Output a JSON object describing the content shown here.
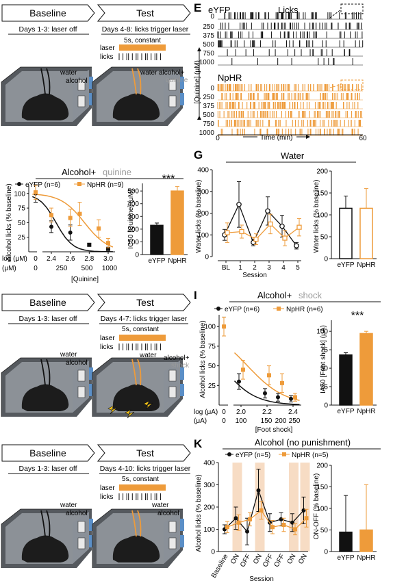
{
  "colors": {
    "eyfp": "#111111",
    "nphr": "#ee9b3a",
    "gray": "#9a9a9a",
    "shade": "#f7dcc4"
  },
  "panelA": {
    "baseline": "Baseline",
    "baseline_days": "Days 1-3: laser off",
    "test": "Test",
    "test_days": "Days 4-8: licks trigger laser",
    "laser_desc": "5s, constant",
    "laser": "laser",
    "licks": "licks",
    "water": "water",
    "alcohol": "alcohol",
    "water2": "water",
    "alcohol_plus": "alcohol+",
    "quinine": "quinine"
  },
  "panelB": {
    "title_a": "Alcohol+",
    "title_b": "quinine",
    "legend_eyfp": "eYFP (n=6)",
    "legend_nphr": "NpHR (n=9)",
    "ylabel": "Alcohol licks (% baseline)",
    "log_label": "log (μM)",
    "um_label": "(μM)",
    "xlabel": "[Quinine]",
    "bar_ylabel": "IC50 [Quinine] (μM)",
    "sig": "***",
    "bar_cats": [
      "eYFP",
      "NpHR"
    ]
  },
  "panelE": {
    "letter": "E",
    "eyfp": "eYFP",
    "licks": "Licks",
    "nphr": "NpHR",
    "axis_label": "[Quinine] (μM)",
    "time_label": "Time (min)",
    "t0": "0",
    "t60": "60",
    "conc": [
      "0",
      "250",
      "375",
      "500",
      "750",
      "1000"
    ]
  },
  "panelG": {
    "letter": "G",
    "title": "Water",
    "ylabel": "Water licks (% baseline)",
    "xlabel": "Session",
    "bar_ylabel": "Water licks (% baseline)",
    "bar_cats": [
      "eYFP",
      "NpHR"
    ]
  },
  "panelH": {
    "baseline": "Baseline",
    "baseline_days": "Days 1-3: laser off",
    "test": "Test",
    "test_days": "Days 4-7: licks trigger laser",
    "laser_desc": "5s, constant",
    "laser": "laser",
    "licks": "licks",
    "water": "water",
    "alcohol": "alcohol",
    "water2": "water",
    "alcohol_plus": "alcohol+",
    "shock": "shock"
  },
  "panelI": {
    "letter": "I",
    "title_a": "Alcohol+",
    "title_b": "shock",
    "legend_eyfp": "eYFP (n=6)",
    "legend_nphr": "NpHR (n=6)",
    "ylabel": "Alcohol licks (% baseline)",
    "log_label": "log (μA)",
    "ua_label": "(μA)",
    "xlabel": "[Foot shock]",
    "bar_ylabel": "IA50 [Foot shock] (μA)",
    "sig": "***",
    "bar_cats": [
      "eYFP",
      "NpHR"
    ]
  },
  "panelJ": {
    "baseline": "Baseline",
    "baseline_days": "Days 1-3: laser off",
    "test": "Test",
    "test_days": "Days 4-10: licks trigger laser",
    "laser_desc": "5s, constant",
    "laser": "laser",
    "licks": "licks",
    "water": "water",
    "alcohol": "alcohol",
    "water2": "water",
    "alcohol2": "alcohol"
  },
  "panelK": {
    "letter": "K",
    "title": "Alcohol (no punishment)",
    "legend_eyfp": "eYFP (n=5)",
    "legend_nphr": "NpHR (n=5)",
    "ylabel": "Alcohol licks (% baseline)",
    "xlabel": "Session",
    "bar_ylabel": "ON-OFF (% baseline)",
    "bar_cats": [
      "eYFP",
      "NpHR"
    ]
  },
  "chart_data": [
    {
      "id": "B",
      "type": "line",
      "x_log": [
        0,
        2.4,
        2.6,
        2.8,
        3.0
      ],
      "x_ticks_log": [
        "0",
        "2.4",
        "2.6",
        "2.8",
        "3.0"
      ],
      "x_ticks_um": [
        "0",
        "250",
        "500",
        "1000"
      ],
      "y_ticks": [
        25,
        50,
        75,
        100
      ],
      "series": [
        {
          "name": "eYFP (n=6)",
          "y": [
            100,
            43,
            33,
            12,
            5
          ],
          "err": [
            15,
            10,
            13,
            2,
            2
          ]
        },
        {
          "name": "NpHR (n=9)",
          "y": [
            102,
            63,
            58,
            65,
            40,
            15
          ],
          "x": [
            0,
            2.4,
            2.6,
            2.7,
            2.9,
            3.0
          ],
          "err": [
            12,
            12,
            15,
            20,
            15,
            8
          ]
        }
      ]
    },
    {
      "id": "B-bar",
      "type": "bar",
      "categories": [
        "eYFP",
        "NpHR"
      ],
      "values": [
        230,
        500
      ],
      "err": [
        18,
        35
      ],
      "y_ticks": [
        0,
        100,
        200,
        300,
        400,
        500
      ]
    },
    {
      "id": "G",
      "type": "line",
      "categories": [
        "BL",
        "1",
        "2",
        "3",
        "4",
        "5"
      ],
      "y_ticks": [
        0,
        100,
        200,
        300,
        400
      ],
      "series": [
        {
          "name": "eYFP",
          "values": [
            100,
            240,
            65,
            210,
            140,
            50
          ],
          "err": [
            25,
            105,
            15,
            65,
            50,
            15
          ]
        },
        {
          "name": "NpHR",
          "values": [
            110,
            115,
            80,
            150,
            85,
            135
          ],
          "err": [
            45,
            30,
            25,
            45,
            35,
            40
          ]
        }
      ]
    },
    {
      "id": "G-bar",
      "type": "bar",
      "categories": [
        "eYFP",
        "NpHR"
      ],
      "values": [
        115,
        115
      ],
      "err": [
        28,
        45
      ],
      "y_ticks": [
        0,
        50,
        100,
        150,
        200
      ]
    },
    {
      "id": "I",
      "type": "line",
      "x_ticks_log": [
        "0",
        "2.0",
        "2.2",
        "2.4"
      ],
      "x_ticks_ua": [
        "0",
        "100",
        "150",
        "200",
        "250"
      ],
      "y_ticks": [
        25,
        50,
        75,
        100
      ],
      "series": [
        {
          "name": "eYFP (n=6)",
          "x": [
            0,
            2.0,
            2.2,
            2.3,
            2.4
          ],
          "y": [
            100,
            30,
            15,
            10,
            8
          ],
          "err": [
            12,
            10,
            6,
            5,
            4
          ]
        },
        {
          "name": "NpHR (n=6)",
          "x": [
            0,
            2.0,
            2.2,
            2.3,
            2.4
          ],
          "y": [
            100,
            45,
            38,
            28,
            10
          ],
          "err": [
            12,
            12,
            12,
            12,
            5
          ]
        }
      ]
    },
    {
      "id": "I-bar",
      "type": "bar",
      "categories": [
        "eYFP",
        "NpHR"
      ],
      "values": [
        68,
        97
      ],
      "err": [
        3,
        3
      ],
      "y_ticks": [
        0,
        25,
        50,
        75,
        100
      ]
    },
    {
      "id": "K",
      "type": "line",
      "categories": [
        "Baseline",
        "ON",
        "OFF",
        "ON",
        "OFF",
        "OFF",
        "ON",
        "ON"
      ],
      "y_ticks": [
        0,
        100,
        200,
        300,
        400
      ],
      "series": [
        {
          "name": "eYFP (n=5)",
          "values": [
            100,
            150,
            90,
            275,
            130,
            145,
            130,
            185
          ],
          "err": [
            20,
            50,
            60,
            95,
            40,
            30,
            40,
            60
          ]
        },
        {
          "name": "NpHR (n=5)",
          "values": [
            110,
            130,
            145,
            185,
            110,
            120,
            100,
            150
          ],
          "err": [
            25,
            35,
            30,
            40,
            30,
            30,
            25,
            40
          ]
        }
      ]
    },
    {
      "id": "K-bar",
      "type": "bar",
      "categories": [
        "eYFP",
        "NpHR"
      ],
      "values": [
        45,
        50
      ],
      "err": [
        85,
        105
      ],
      "y_ticks": [
        0,
        50,
        100,
        150,
        200
      ]
    },
    {
      "id": "E",
      "type": "raster",
      "rows": [
        "0",
        "250",
        "375",
        "500",
        "750",
        "1000"
      ],
      "series": [
        {
          "name": "eYFP"
        },
        {
          "name": "NpHR"
        }
      ],
      "time_range": [
        0,
        60
      ]
    }
  ]
}
